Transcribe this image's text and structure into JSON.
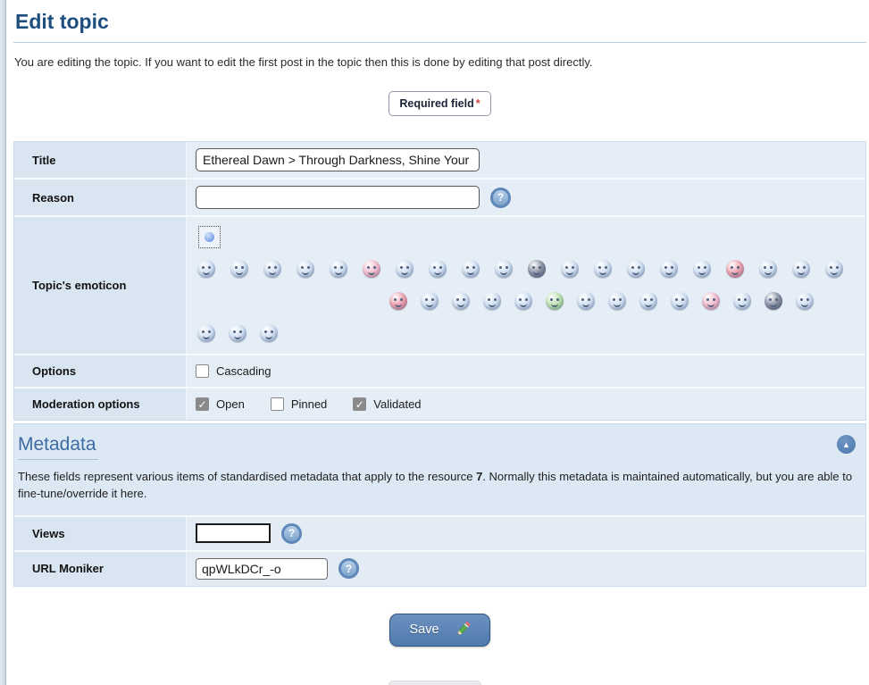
{
  "page": {
    "title": "Edit topic",
    "intro": "You are editing the topic. If you want to edit the first post in the topic then this is done by editing that post directly.",
    "required_field_label": "Required field",
    "required_asterisk": "*"
  },
  "form": {
    "title_label": "Title",
    "title_value": "Ethereal Dawn > Through Darkness, Shine Your Light",
    "reason_label": "Reason",
    "reason_value": "",
    "emoticon_label": "Topic's emoticon",
    "options_label": "Options",
    "options": [
      {
        "name": "cascading",
        "label": "Cascading",
        "checked": false
      }
    ],
    "moderation_label": "Moderation options",
    "moderation": [
      {
        "name": "open",
        "label": "Open",
        "checked": true
      },
      {
        "name": "pinned",
        "label": "Pinned",
        "checked": false
      },
      {
        "name": "validated",
        "label": "Validated",
        "checked": true
      }
    ]
  },
  "emoticons": {
    "row1": [
      {
        "name": "tongue",
        "color": "blue"
      },
      {
        "name": "cry",
        "color": "blue"
      },
      {
        "name": "wink",
        "color": "blue"
      },
      {
        "name": "blush",
        "color": "blue"
      },
      {
        "name": "nerd",
        "color": "blue"
      },
      {
        "name": "love",
        "color": "pink"
      },
      {
        "name": "glasses",
        "color": "blue"
      },
      {
        "name": "grin",
        "color": "blue"
      },
      {
        "name": "sad",
        "color": "blue"
      },
      {
        "name": "thumbs-up",
        "color": "blue"
      },
      {
        "name": "cool-shades",
        "color": "dark"
      },
      {
        "name": "shocked",
        "color": "blue"
      },
      {
        "name": "drowsy",
        "color": "blue"
      },
      {
        "name": "laugh",
        "color": "blue"
      },
      {
        "name": "smile",
        "color": "blue"
      },
      {
        "name": "annoyed",
        "color": "blue"
      },
      {
        "name": "angry",
        "color": "red"
      },
      {
        "name": "straight-face",
        "color": "blue"
      },
      {
        "name": "hand-wave",
        "color": "blue"
      },
      {
        "name": "kiss",
        "color": "blue"
      }
    ],
    "row2": [
      {
        "name": "devil",
        "color": "red"
      },
      {
        "name": "dizzy",
        "color": "blue"
      },
      {
        "name": "upset",
        "color": "blue"
      },
      {
        "name": "sleepy",
        "color": "blue"
      },
      {
        "name": "gasp",
        "color": "blue"
      },
      {
        "name": "sick",
        "color": "green"
      },
      {
        "name": "neutral",
        "color": "blue"
      },
      {
        "name": "rolleyes",
        "color": "blue"
      },
      {
        "name": "confused",
        "color": "blue"
      },
      {
        "name": "idea",
        "color": "blue"
      },
      {
        "name": "balloons",
        "color": "pink"
      },
      {
        "name": "rocker",
        "color": "blue"
      },
      {
        "name": "ninja",
        "color": "dark"
      },
      {
        "name": "angel",
        "color": "blue"
      }
    ],
    "row3": [
      {
        "name": "cowboy",
        "color": "blue"
      },
      {
        "name": "whistle",
        "color": "blue"
      },
      {
        "name": "facepalm",
        "color": "blue"
      }
    ]
  },
  "metadata": {
    "heading": "Metadata",
    "description_before": "These fields represent various items of standardised metadata that apply to the resource ",
    "resource_id": "7",
    "description_after": ". Normally this metadata is maintained automatically, but you are able to fine-tune/override it here.",
    "views_label": "Views",
    "views_value": "",
    "url_moniker_label": "URL Moniker",
    "url_moniker_value": "qpWLkDCr_-o"
  },
  "icons": {
    "help_glyph": "?",
    "collapse_glyph": "▲"
  },
  "save_button": {
    "label": "Save"
  },
  "colors": {
    "accent_heading": "#1d4e7e",
    "metadata_heading": "#3e6ca3",
    "section_background": "#dce8f4",
    "save_button": "#5b84b8",
    "required_asterisk": "#d04545"
  }
}
